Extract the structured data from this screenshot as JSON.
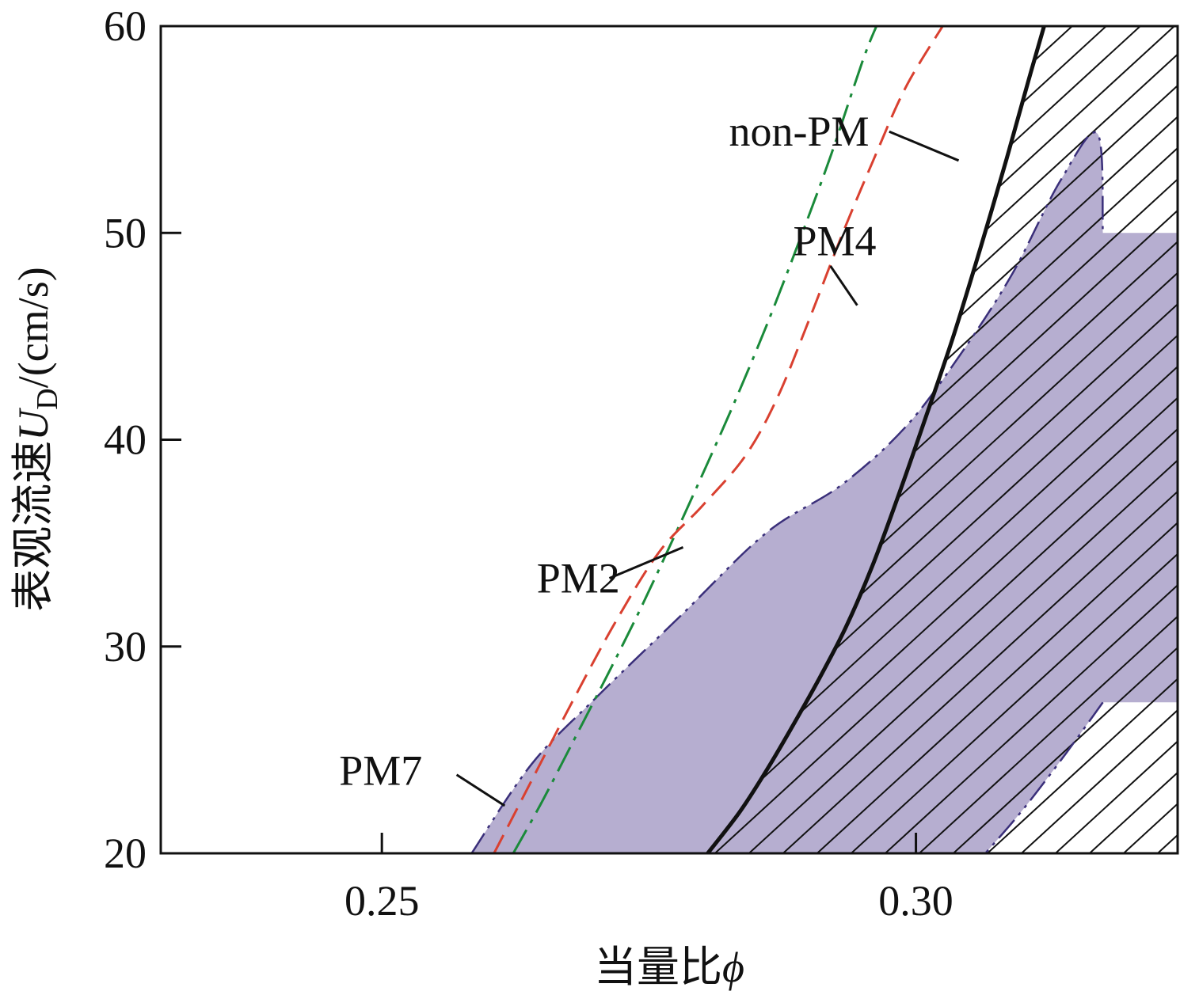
{
  "chart_data": {
    "type": "line",
    "title": "",
    "xlabel": "当量比",
    "xlabel_symbol": "ϕ",
    "ylabel": "表观流速",
    "ylabel_symbol": "U",
    "ylabel_subscript": "D",
    "ylabel_unit": "/(cm/s)",
    "xlim": [
      0.2293,
      0.3245
    ],
    "ylim": [
      20,
      60
    ],
    "x_ticks": [
      0.25,
      0.3
    ],
    "x_tick_labels": [
      "0.25",
      "0.30"
    ],
    "y_ticks": [
      20,
      30,
      40,
      50,
      60
    ],
    "y_tick_labels": [
      "20",
      "30",
      "40",
      "50",
      "60"
    ],
    "grid": false,
    "series": [
      {
        "name": "non-PM",
        "color": "#111111",
        "style": "solid",
        "points": [
          [
            0.2805,
            20.0
          ],
          [
            0.2835,
            22.0
          ],
          [
            0.286,
            24.0
          ],
          [
            0.2885,
            26.2
          ],
          [
            0.291,
            28.5
          ],
          [
            0.2935,
            31.0
          ],
          [
            0.296,
            34.0
          ],
          [
            0.2985,
            37.5
          ],
          [
            0.301,
            41.2
          ],
          [
            0.3035,
            45.0
          ],
          [
            0.306,
            49.2
          ],
          [
            0.3085,
            53.6
          ],
          [
            0.3105,
            57.3
          ],
          [
            0.312,
            60.0
          ]
        ]
      },
      {
        "name": "PM4",
        "color": "#1a8a3a",
        "style": "dashdot",
        "points": [
          [
            0.2623,
            20.0
          ],
          [
            0.265,
            22.5
          ],
          [
            0.268,
            25.5
          ],
          [
            0.271,
            28.5
          ],
          [
            0.274,
            31.6
          ],
          [
            0.277,
            34.9
          ],
          [
            0.28,
            38.3
          ],
          [
            0.283,
            41.8
          ],
          [
            0.286,
            45.5
          ],
          [
            0.289,
            49.5
          ],
          [
            0.292,
            53.7
          ],
          [
            0.295,
            58.3
          ],
          [
            0.2963,
            60.0
          ]
        ]
      },
      {
        "name": "PM2",
        "color": "#d94030",
        "style": "dashed",
        "points": [
          [
            0.2605,
            20.0
          ],
          [
            0.264,
            23.5
          ],
          [
            0.268,
            27.5
          ],
          [
            0.272,
            31.3
          ],
          [
            0.276,
            34.6
          ],
          [
            0.28,
            36.8
          ],
          [
            0.284,
            39.2
          ],
          [
            0.287,
            42.0
          ],
          [
            0.29,
            45.8
          ],
          [
            0.293,
            49.8
          ],
          [
            0.296,
            53.5
          ],
          [
            0.299,
            57.0
          ],
          [
            0.3025,
            60.0
          ]
        ]
      },
      {
        "name": "PM7",
        "color": "#3a2f7a",
        "style": "dashdotdot",
        "fill": "#b6aed0",
        "hatched_overlap": true,
        "upper_points": [
          [
            0.2584,
            20.0
          ],
          [
            0.264,
            24.3
          ],
          [
            0.27,
            27.5
          ],
          [
            0.278,
            31.5
          ],
          [
            0.286,
            35.5
          ],
          [
            0.293,
            37.8
          ],
          [
            0.299,
            40.6
          ],
          [
            0.304,
            44.0
          ],
          [
            0.309,
            48.0
          ],
          [
            0.3135,
            52.5
          ],
          [
            0.317,
            54.8
          ],
          [
            0.3175,
            50.0
          ]
        ],
        "lower_points": [
          [
            0.3175,
            27.3
          ],
          [
            0.314,
            24.8
          ],
          [
            0.31,
            22.1
          ],
          [
            0.3065,
            20.0
          ]
        ]
      }
    ],
    "hatch_region": {
      "color": "#111111",
      "description_bounds": "right of non-PM curve",
      "style": "diagonal-lines"
    },
    "annotations": [
      {
        "text": "non-PM",
        "x": 0.2825,
        "y": 54.9,
        "pointer": [
          [
            0.2975,
            54.9
          ],
          [
            0.304,
            53.5
          ]
        ]
      },
      {
        "text": "PM4",
        "x": 0.2885,
        "y": 49.6,
        "pointer": [
          [
            0.292,
            48.4
          ],
          [
            0.2945,
            46.5
          ]
        ]
      },
      {
        "text": "PM2",
        "x": 0.2645,
        "y": 33.3,
        "pointer": [
          [
            0.2713,
            33.3
          ],
          [
            0.2782,
            34.8
          ]
        ]
      },
      {
        "text": "PM7",
        "x": 0.246,
        "y": 24.0,
        "pointer": [
          [
            0.257,
            23.8
          ],
          [
            0.2615,
            22.3
          ]
        ]
      }
    ]
  }
}
